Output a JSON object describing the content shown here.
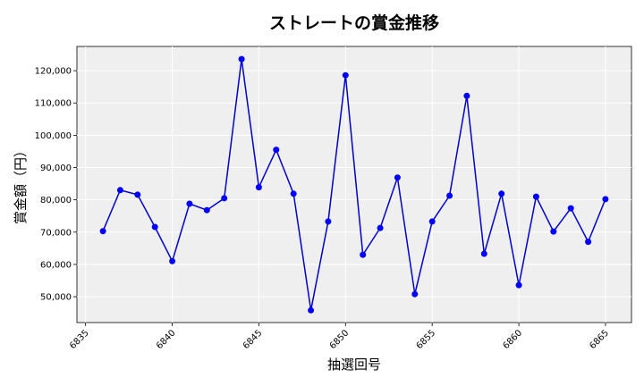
{
  "chart_data": {
    "type": "line",
    "title": "ストレートの賞金推移",
    "xlabel": "抽選回号",
    "ylabel": "賞金額（円）",
    "xlim": [
      6834.5,
      6866.5
    ],
    "ylim": [
      42000,
      127500
    ],
    "xticks": [
      6835,
      6840,
      6845,
      6850,
      6855,
      6860,
      6865
    ],
    "xtick_labels": [
      "6835",
      "6840",
      "6845",
      "6850",
      "6855",
      "6860",
      "6865"
    ],
    "yticks": [
      50000,
      60000,
      70000,
      80000,
      90000,
      100000,
      110000,
      120000
    ],
    "ytick_labels": [
      "50,000",
      "60,000",
      "70,000",
      "80,000",
      "90,000",
      "100,000",
      "110,000",
      "120,000"
    ],
    "grid": true,
    "line_color": "#0000cc",
    "marker_color": "#0000ff",
    "plot_background": "#efefef",
    "series": [
      {
        "x": [
          6836,
          6837,
          6838,
          6839,
          6840,
          6841,
          6842,
          6843,
          6844,
          6845,
          6846,
          6847,
          6848,
          6849,
          6850,
          6851,
          6852,
          6853,
          6854,
          6855,
          6856,
          6857,
          6858,
          6859,
          6860,
          6861,
          6862,
          6863,
          6864,
          6865
        ],
        "values": [
          70300,
          83000,
          81600,
          71600,
          61000,
          78800,
          76800,
          80500,
          123600,
          83900,
          95500,
          81900,
          45800,
          73300,
          118600,
          63000,
          71300,
          86900,
          50800,
          73300,
          81300,
          112200,
          63300,
          81900,
          53600,
          81000,
          70200,
          77400,
          67000,
          80200
        ]
      }
    ]
  }
}
